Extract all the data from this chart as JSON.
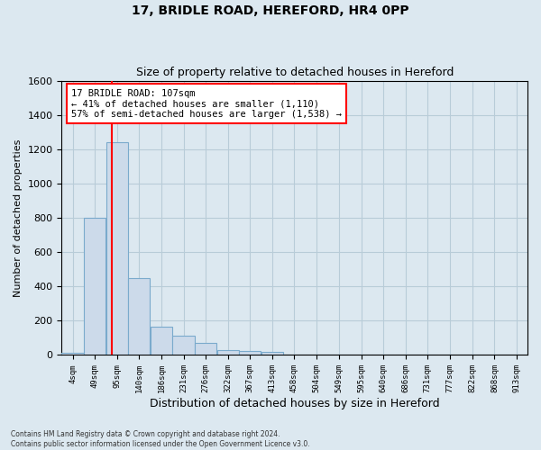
{
  "title1": "17, BRIDLE ROAD, HEREFORD, HR4 0PP",
  "title2": "Size of property relative to detached houses in Hereford",
  "xlabel": "Distribution of detached houses by size in Hereford",
  "ylabel": "Number of detached properties",
  "footnote1": "Contains HM Land Registry data © Crown copyright and database right 2024.",
  "footnote2": "Contains public sector information licensed under the Open Government Licence v3.0.",
  "bar_labels": [
    "4sqm",
    "49sqm",
    "95sqm",
    "140sqm",
    "186sqm",
    "231sqm",
    "276sqm",
    "322sqm",
    "367sqm",
    "413sqm",
    "458sqm",
    "504sqm",
    "549sqm",
    "595sqm",
    "640sqm",
    "686sqm",
    "731sqm",
    "777sqm",
    "822sqm",
    "868sqm",
    "913sqm"
  ],
  "bar_values": [
    15,
    800,
    1240,
    450,
    165,
    115,
    70,
    30,
    25,
    20,
    0,
    0,
    0,
    0,
    0,
    0,
    0,
    0,
    0,
    0,
    0
  ],
  "bar_color": "#ccdaea",
  "bar_edgecolor": "#7aaacc",
  "ylim": [
    0,
    1600
  ],
  "yticks": [
    0,
    200,
    400,
    600,
    800,
    1000,
    1200,
    1400,
    1600
  ],
  "vline_x": 107,
  "annotation_title": "17 BRIDLE ROAD: 107sqm",
  "annotation_line1": "← 41% of detached houses are smaller (1,110)",
  "annotation_line2": "57% of semi-detached houses are larger (1,538) →",
  "annotation_box_color": "white",
  "annotation_box_edgecolor": "red",
  "vline_color": "red",
  "grid_color": "#b8ccd8",
  "bg_color": "#dce8f0",
  "bin_starts": [
    4,
    49,
    95,
    140,
    186,
    231,
    276,
    322,
    367,
    413,
    458,
    504,
    549,
    595,
    640,
    686,
    731,
    777,
    822,
    868,
    913
  ],
  "bin_width": 45
}
